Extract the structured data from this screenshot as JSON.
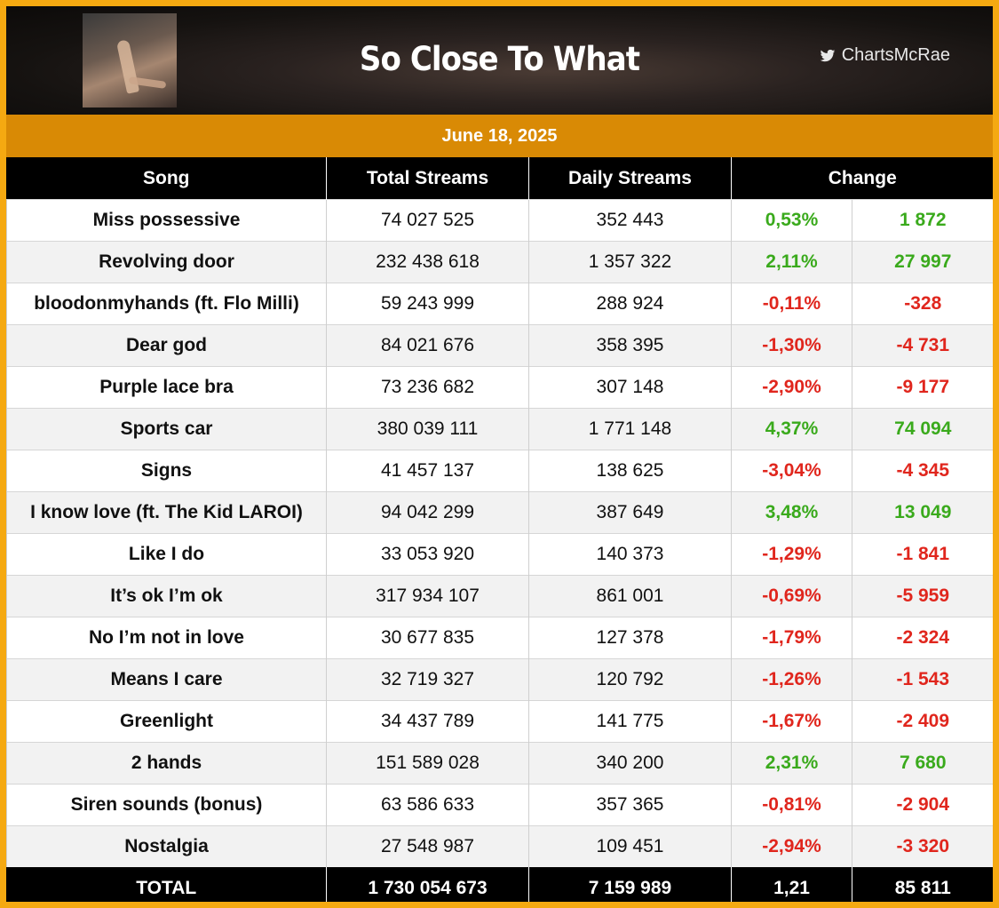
{
  "header": {
    "title": "So Close To What",
    "handle": "ChartsMcRae",
    "cover_icon": "album-cover-image",
    "social_icon": "twitter-bird-icon"
  },
  "date": "June 18, 2025",
  "columns": {
    "song": "Song",
    "total": "Total Streams",
    "daily": "Daily Streams",
    "change": "Change"
  },
  "colors": {
    "positive": "#3aaa1c",
    "negative": "#e0261d",
    "accent": "#f5a911",
    "date_band": "#d98a05"
  },
  "rows": [
    {
      "song": "Miss possessive",
      "total": "74 027 525",
      "daily": "352 443",
      "pct": "0,53%",
      "diff": "1 872"
    },
    {
      "song": "Revolving door",
      "total": "232 438 618",
      "daily": "1 357 322",
      "pct": "2,11%",
      "diff": "27 997"
    },
    {
      "song": "bloodonmyhands (ft. Flo Milli)",
      "total": "59 243 999",
      "daily": "288 924",
      "pct": "-0,11%",
      "diff": "-328"
    },
    {
      "song": "Dear god",
      "total": "84 021 676",
      "daily": "358 395",
      "pct": "-1,30%",
      "diff": "-4 731"
    },
    {
      "song": "Purple lace bra",
      "total": "73 236 682",
      "daily": "307 148",
      "pct": "-2,90%",
      "diff": "-9 177"
    },
    {
      "song": "Sports car",
      "total": "380 039 111",
      "daily": "1 771 148",
      "pct": "4,37%",
      "diff": "74 094"
    },
    {
      "song": "Signs",
      "total": "41 457 137",
      "daily": "138 625",
      "pct": "-3,04%",
      "diff": "-4 345"
    },
    {
      "song": "I know love (ft. The Kid LAROI)",
      "total": "94 042 299",
      "daily": "387 649",
      "pct": "3,48%",
      "diff": "13 049"
    },
    {
      "song": "Like I do",
      "total": "33 053 920",
      "daily": "140 373",
      "pct": "-1,29%",
      "diff": "-1 841"
    },
    {
      "song": "It’s ok I’m ok",
      "total": "317 934 107",
      "daily": "861 001",
      "pct": "-0,69%",
      "diff": "-5 959"
    },
    {
      "song": "No I’m not in love",
      "total": "30 677 835",
      "daily": "127 378",
      "pct": "-1,79%",
      "diff": "-2 324"
    },
    {
      "song": "Means I care",
      "total": "32 719 327",
      "daily": "120 792",
      "pct": "-1,26%",
      "diff": "-1 543"
    },
    {
      "song": "Greenlight",
      "total": "34 437 789",
      "daily": "141 775",
      "pct": "-1,67%",
      "diff": "-2 409"
    },
    {
      "song": "2 hands",
      "total": "151 589 028",
      "daily": "340 200",
      "pct": "2,31%",
      "diff": "7 680"
    },
    {
      "song": "Siren sounds (bonus)",
      "total": "63 586 633",
      "daily": "357 365",
      "pct": "-0,81%",
      "diff": "-2 904"
    },
    {
      "song": "Nostalgia",
      "total": "27 548 987",
      "daily": "109 451",
      "pct": "-2,94%",
      "diff": "-3 320"
    }
  ],
  "total": {
    "label": "TOTAL",
    "total": "1 730 054 673",
    "daily": "7 159 989",
    "pct": "1,21",
    "diff": "85 811"
  }
}
